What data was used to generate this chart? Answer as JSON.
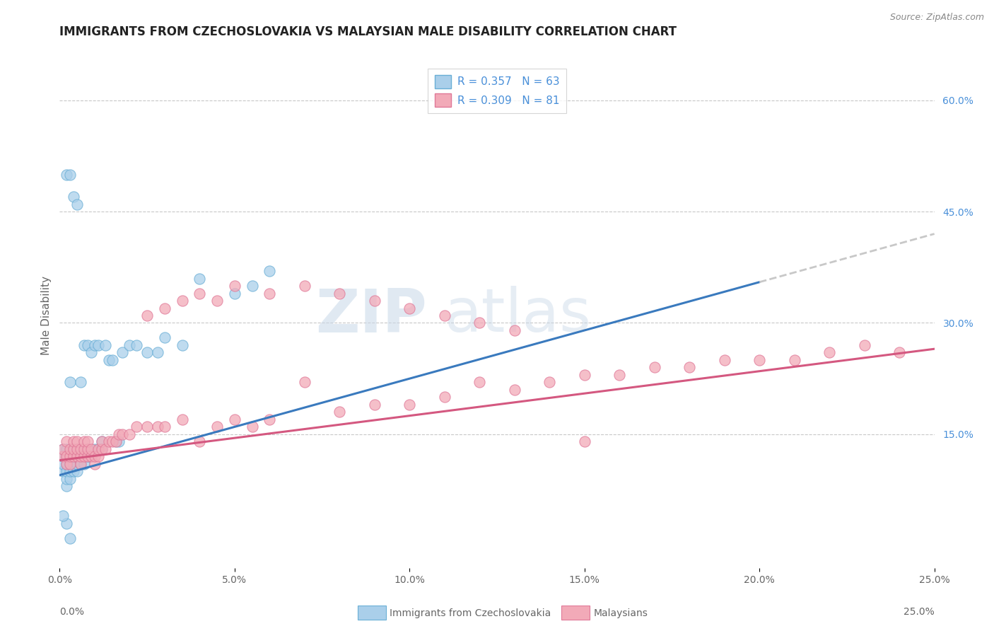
{
  "title": "IMMIGRANTS FROM CZECHOSLOVAKIA VS MALAYSIAN MALE DISABILITY CORRELATION CHART",
  "source": "Source: ZipAtlas.com",
  "ylabel": "Male Disability",
  "legend_label1": "Immigrants from Czechoslovakia",
  "legend_label2": "Malaysians",
  "R1": 0.357,
  "N1": 63,
  "R2": 0.309,
  "N2": 81,
  "color1": "#aacfea",
  "color2": "#f2aab8",
  "edgecolor1": "#6aafd6",
  "edgecolor2": "#e07898",
  "linecolor1": "#3a7abe",
  "linecolor2": "#d45880",
  "xlim": [
    0.0,
    0.25
  ],
  "ylim": [
    -0.03,
    0.65
  ],
  "xtick_vals": [
    0.0,
    0.05,
    0.1,
    0.15,
    0.2,
    0.25
  ],
  "yticks_right": [
    0.15,
    0.3,
    0.45,
    0.6
  ],
  "grid_color": "#c8c8c8",
  "background_color": "#ffffff",
  "watermark1": "ZIP",
  "watermark2": "atlas",
  "trendline1_x0": 0.0,
  "trendline1_y0": 0.095,
  "trendline1_x1": 0.2,
  "trendline1_y1": 0.355,
  "trendline1_ext_x1": 0.25,
  "trendline1_ext_y1": 0.42,
  "trendline2_x0": 0.0,
  "trendline2_y0": 0.115,
  "trendline2_x1": 0.25,
  "trendline2_y1": 0.265,
  "title_fontsize": 12,
  "title_color": "#222222",
  "source_color": "#888888",
  "right_tick_color": "#4a90d9",
  "axis_label_color": "#666666",
  "scatter1_x": [
    0.001,
    0.001,
    0.001,
    0.001,
    0.002,
    0.002,
    0.002,
    0.002,
    0.002,
    0.002,
    0.003,
    0.003,
    0.003,
    0.003,
    0.003,
    0.004,
    0.004,
    0.004,
    0.004,
    0.005,
    0.005,
    0.005,
    0.005,
    0.006,
    0.006,
    0.006,
    0.007,
    0.007,
    0.007,
    0.008,
    0.008,
    0.008,
    0.009,
    0.009,
    0.01,
    0.01,
    0.011,
    0.011,
    0.012,
    0.012,
    0.013,
    0.014,
    0.015,
    0.016,
    0.017,
    0.018,
    0.02,
    0.022,
    0.025,
    0.028,
    0.03,
    0.035,
    0.04,
    0.05,
    0.055,
    0.06,
    0.002,
    0.003,
    0.004,
    0.005,
    0.003,
    0.002,
    0.001
  ],
  "scatter1_y": [
    0.1,
    0.11,
    0.12,
    0.13,
    0.08,
    0.09,
    0.1,
    0.11,
    0.12,
    0.13,
    0.09,
    0.1,
    0.11,
    0.12,
    0.22,
    0.1,
    0.11,
    0.12,
    0.13,
    0.1,
    0.11,
    0.12,
    0.13,
    0.11,
    0.12,
    0.22,
    0.11,
    0.12,
    0.27,
    0.12,
    0.13,
    0.27,
    0.12,
    0.26,
    0.13,
    0.27,
    0.13,
    0.27,
    0.14,
    0.13,
    0.27,
    0.25,
    0.25,
    0.14,
    0.14,
    0.26,
    0.27,
    0.27,
    0.26,
    0.26,
    0.28,
    0.27,
    0.36,
    0.34,
    0.35,
    0.37,
    0.5,
    0.5,
    0.47,
    0.46,
    0.01,
    0.03,
    0.04
  ],
  "scatter2_x": [
    0.001,
    0.001,
    0.002,
    0.002,
    0.002,
    0.003,
    0.003,
    0.003,
    0.004,
    0.004,
    0.004,
    0.005,
    0.005,
    0.005,
    0.006,
    0.006,
    0.006,
    0.007,
    0.007,
    0.007,
    0.008,
    0.008,
    0.008,
    0.009,
    0.009,
    0.01,
    0.01,
    0.011,
    0.011,
    0.012,
    0.012,
    0.013,
    0.014,
    0.015,
    0.016,
    0.017,
    0.018,
    0.02,
    0.022,
    0.025,
    0.028,
    0.03,
    0.035,
    0.04,
    0.045,
    0.05,
    0.055,
    0.06,
    0.07,
    0.08,
    0.09,
    0.1,
    0.11,
    0.12,
    0.13,
    0.14,
    0.15,
    0.16,
    0.17,
    0.18,
    0.19,
    0.2,
    0.21,
    0.22,
    0.23,
    0.24,
    0.025,
    0.03,
    0.035,
    0.04,
    0.045,
    0.05,
    0.06,
    0.07,
    0.08,
    0.09,
    0.1,
    0.11,
    0.12,
    0.13,
    0.15
  ],
  "scatter2_y": [
    0.12,
    0.13,
    0.11,
    0.12,
    0.14,
    0.11,
    0.12,
    0.13,
    0.12,
    0.13,
    0.14,
    0.12,
    0.13,
    0.14,
    0.11,
    0.12,
    0.13,
    0.12,
    0.13,
    0.14,
    0.12,
    0.13,
    0.14,
    0.12,
    0.13,
    0.11,
    0.12,
    0.12,
    0.13,
    0.13,
    0.14,
    0.13,
    0.14,
    0.14,
    0.14,
    0.15,
    0.15,
    0.15,
    0.16,
    0.16,
    0.16,
    0.16,
    0.17,
    0.14,
    0.16,
    0.17,
    0.16,
    0.17,
    0.22,
    0.18,
    0.19,
    0.19,
    0.2,
    0.22,
    0.21,
    0.22,
    0.23,
    0.23,
    0.24,
    0.24,
    0.25,
    0.25,
    0.25,
    0.26,
    0.27,
    0.26,
    0.31,
    0.32,
    0.33,
    0.34,
    0.33,
    0.35,
    0.34,
    0.35,
    0.34,
    0.33,
    0.32,
    0.31,
    0.3,
    0.29,
    0.14
  ]
}
